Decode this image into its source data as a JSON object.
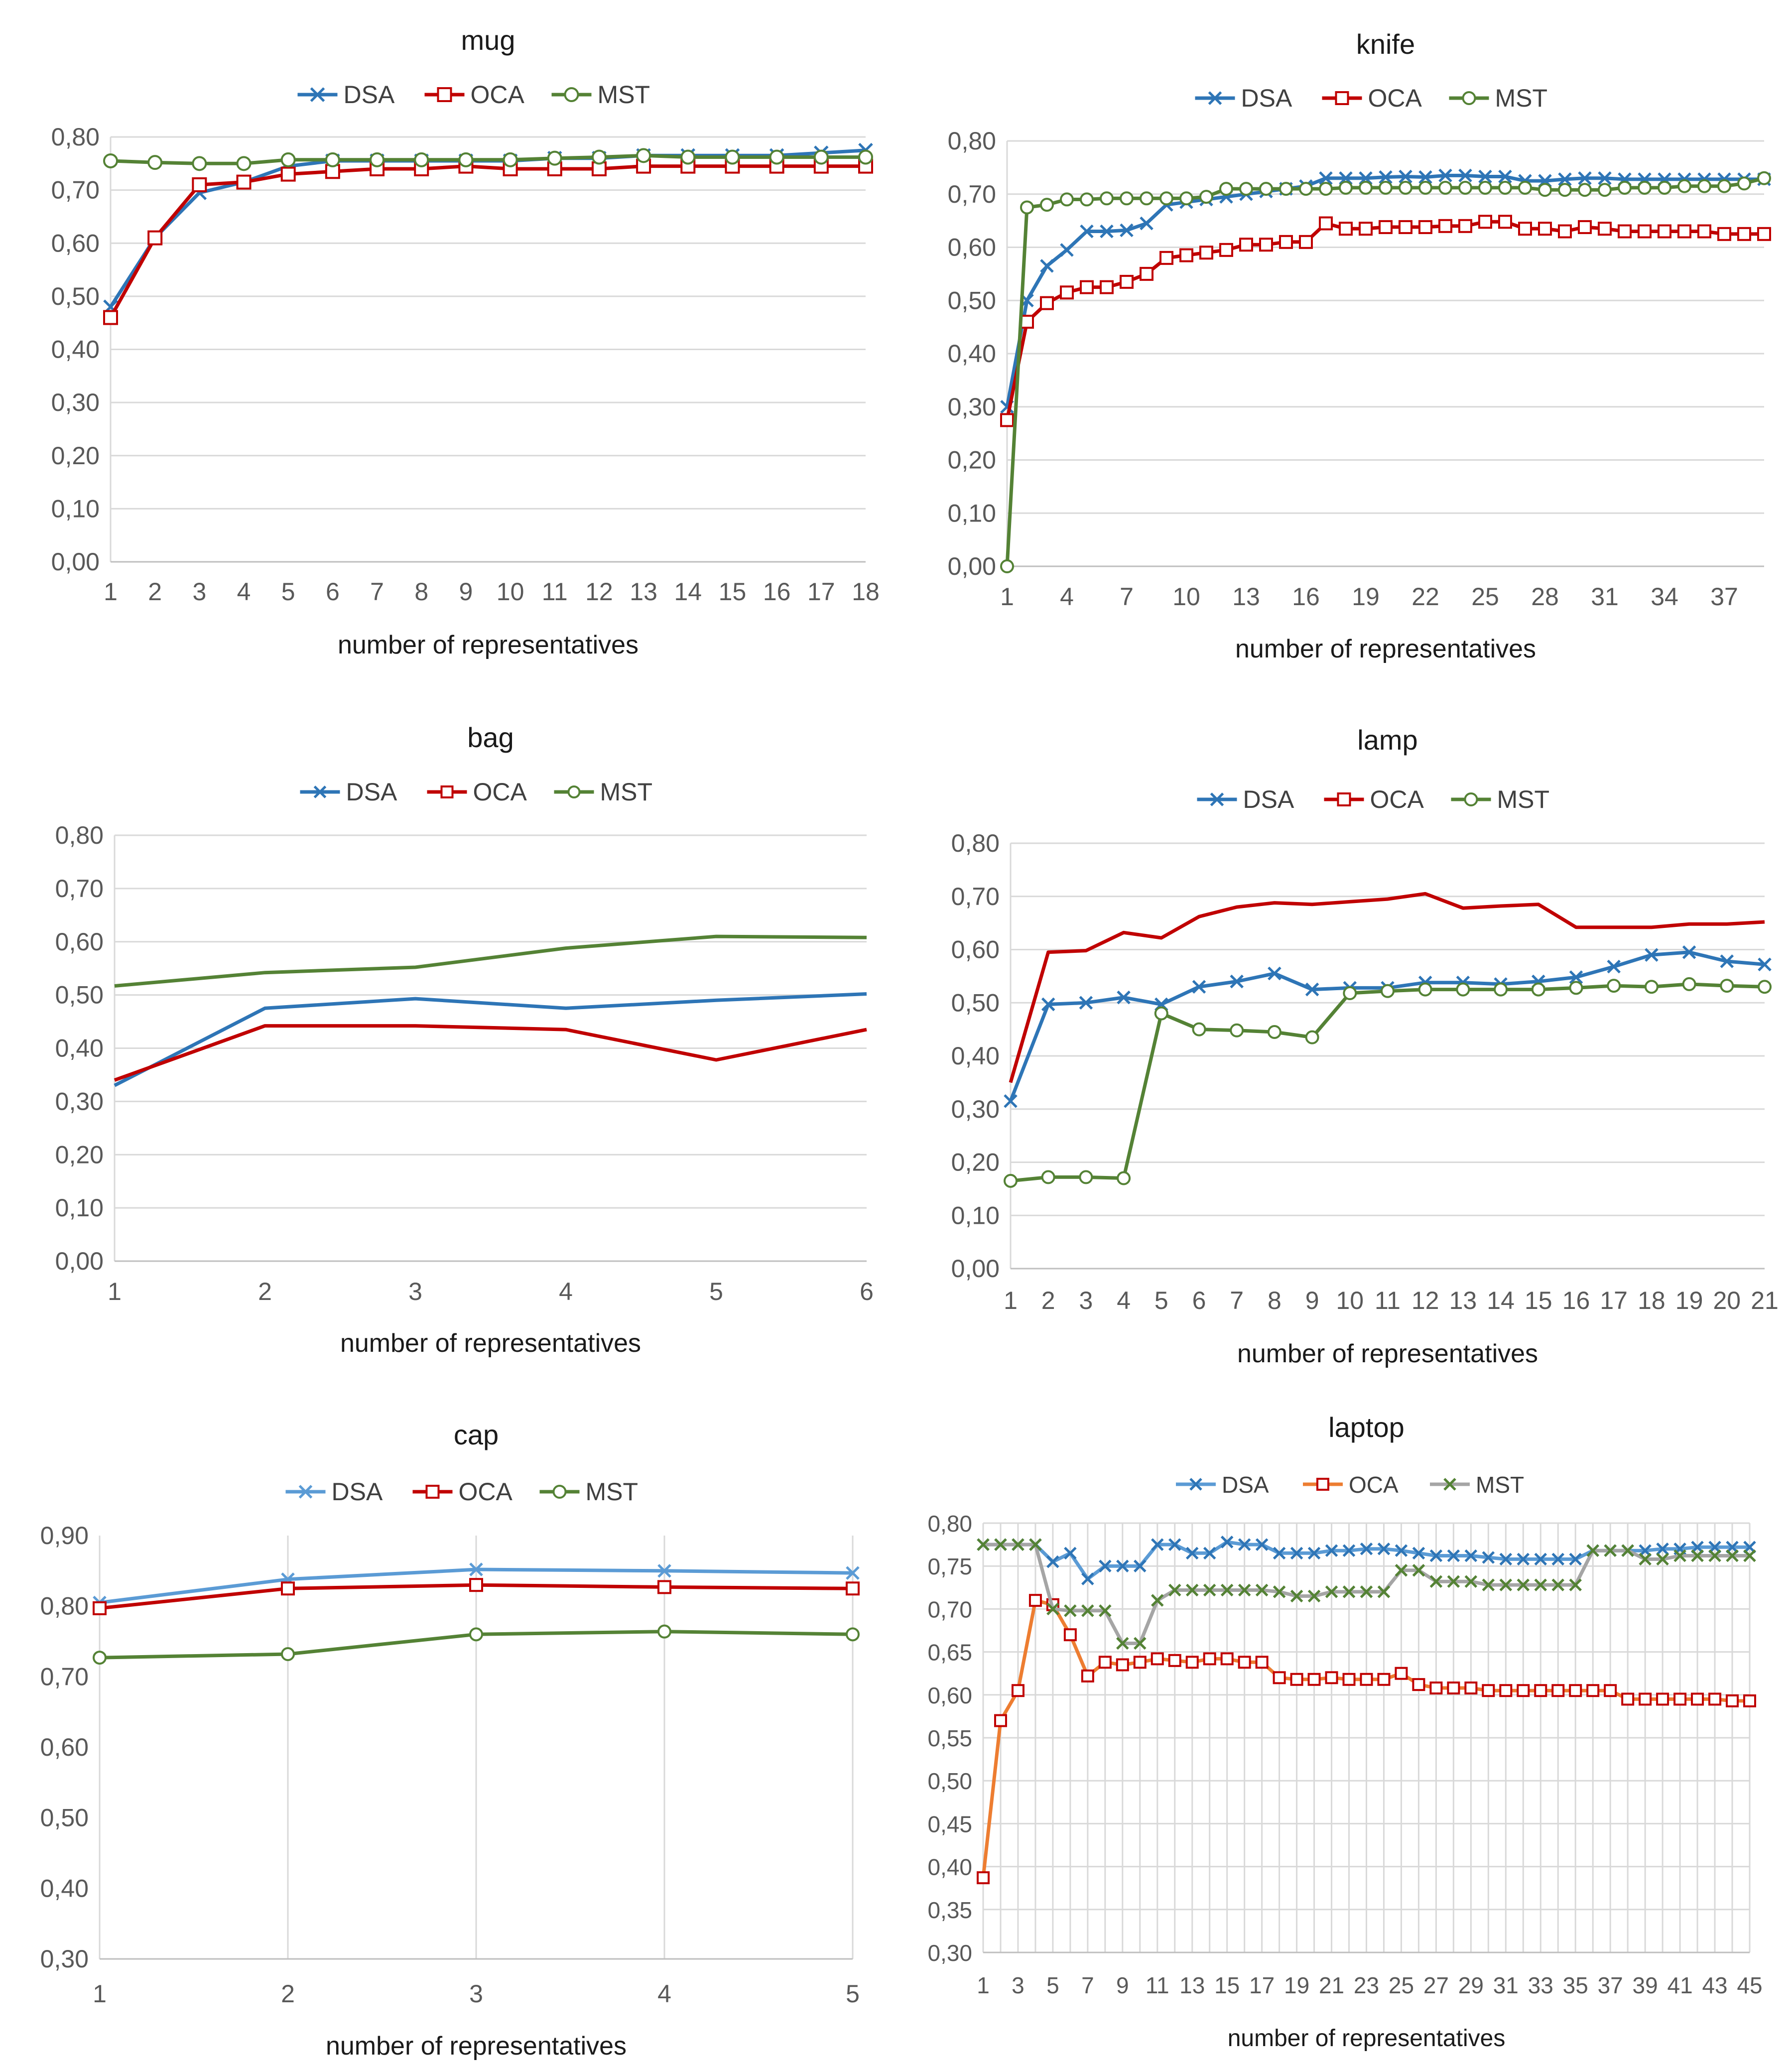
{
  "chart_data": [
    {
      "id": "mug",
      "type": "line",
      "title": "mug",
      "xlabel": "number of representatives",
      "ylabel": "",
      "ylim": [
        0,
        0.8
      ],
      "ytick_step": 0.1,
      "yticks": [
        "0,00",
        "0,10",
        "0,20",
        "0,30",
        "0,40",
        "0,50",
        "0,60",
        "0,70",
        "0,80"
      ],
      "x": [
        1,
        2,
        3,
        4,
        5,
        6,
        7,
        8,
        9,
        10,
        11,
        12,
        13,
        14,
        15,
        16,
        17,
        18
      ],
      "xticks": [
        "1",
        "2",
        "3",
        "4",
        "5",
        "6",
        "7",
        "8",
        "9",
        "10",
        "11",
        "12",
        "13",
        "14",
        "15",
        "16",
        "17",
        "18"
      ],
      "legend": "top",
      "grid": "horizontal",
      "series": [
        {
          "name": "DSA",
          "color": "#2e75b6",
          "marker": "x",
          "values": [
            0.48,
            0.61,
            0.695,
            0.715,
            0.745,
            0.755,
            0.755,
            0.755,
            0.755,
            0.755,
            0.76,
            0.76,
            0.765,
            0.765,
            0.765,
            0.765,
            0.77,
            0.775
          ]
        },
        {
          "name": "OCA",
          "color": "#c00000",
          "marker": "square",
          "values": [
            0.46,
            0.61,
            0.71,
            0.715,
            0.73,
            0.735,
            0.74,
            0.74,
            0.745,
            0.74,
            0.74,
            0.74,
            0.745,
            0.745,
            0.745,
            0.745,
            0.745,
            0.745
          ]
        },
        {
          "name": "MST",
          "color": "#548235",
          "marker": "circle",
          "values": [
            0.755,
            0.752,
            0.75,
            0.75,
            0.757,
            0.757,
            0.757,
            0.757,
            0.757,
            0.757,
            0.76,
            0.762,
            0.765,
            0.762,
            0.762,
            0.762,
            0.762,
            0.762
          ]
        }
      ]
    },
    {
      "id": "knife",
      "type": "line",
      "title": "knife",
      "xlabel": "number of representatives",
      "ylabel": "",
      "ylim": [
        0,
        0.8
      ],
      "ytick_step": 0.1,
      "yticks": [
        "0,00",
        "0,10",
        "0,20",
        "0,30",
        "0,40",
        "0,50",
        "0,60",
        "0,70",
        "0,80"
      ],
      "x": [
        1,
        2,
        3,
        4,
        5,
        6,
        7,
        8,
        9,
        10,
        11,
        12,
        13,
        14,
        15,
        16,
        17,
        18,
        19,
        20,
        21,
        22,
        23,
        24,
        25,
        26,
        27,
        28,
        29,
        30,
        31,
        32,
        33,
        34,
        35,
        36,
        37,
        38,
        39
      ],
      "xticks": [
        "1",
        "4",
        "7",
        "10",
        "13",
        "16",
        "19",
        "22",
        "25",
        "28",
        "31",
        "34",
        "37"
      ],
      "xtick_positions": [
        1,
        4,
        7,
        10,
        13,
        16,
        19,
        22,
        25,
        28,
        31,
        34,
        37
      ],
      "legend": "top",
      "grid": "horizontal",
      "series": [
        {
          "name": "DSA",
          "color": "#2e75b6",
          "marker": "x",
          "values": [
            0.3,
            0.5,
            0.565,
            0.595,
            0.63,
            0.63,
            0.632,
            0.645,
            0.68,
            0.685,
            0.69,
            0.695,
            0.7,
            0.705,
            0.71,
            0.715,
            0.73,
            0.73,
            0.73,
            0.732,
            0.733,
            0.732,
            0.735,
            0.735,
            0.733,
            0.733,
            0.725,
            0.725,
            0.728,
            0.73,
            0.73,
            0.728,
            0.728,
            0.728,
            0.728,
            0.728,
            0.728,
            0.728,
            0.728
          ]
        },
        {
          "name": "OCA",
          "color": "#c00000",
          "marker": "square",
          "values": [
            0.275,
            0.46,
            0.495,
            0.515,
            0.525,
            0.525,
            0.535,
            0.55,
            0.58,
            0.585,
            0.59,
            0.595,
            0.605,
            0.605,
            0.61,
            0.61,
            0.645,
            0.635,
            0.635,
            0.638,
            0.638,
            0.638,
            0.64,
            0.64,
            0.648,
            0.648,
            0.635,
            0.635,
            0.63,
            0.638,
            0.635,
            0.63,
            0.63,
            0.63,
            0.63,
            0.63,
            0.625,
            0.625,
            0.625
          ]
        },
        {
          "name": "MST",
          "color": "#548235",
          "marker": "circle",
          "values": [
            0.0,
            0.675,
            0.68,
            0.69,
            0.69,
            0.692,
            0.692,
            0.692,
            0.692,
            0.692,
            0.695,
            0.71,
            0.71,
            0.71,
            0.71,
            0.71,
            0.71,
            0.712,
            0.712,
            0.712,
            0.712,
            0.712,
            0.712,
            0.712,
            0.712,
            0.712,
            0.712,
            0.708,
            0.708,
            0.708,
            0.708,
            0.712,
            0.712,
            0.712,
            0.715,
            0.715,
            0.715,
            0.72,
            0.73
          ]
        }
      ]
    },
    {
      "id": "bag",
      "type": "line",
      "title": "bag",
      "xlabel": "number of representatives",
      "ylabel": "",
      "ylim": [
        0,
        0.8
      ],
      "ytick_step": 0.1,
      "yticks": [
        "0,00",
        "0,10",
        "0,20",
        "0,30",
        "0,40",
        "0,50",
        "0,60",
        "0,70",
        "0,80"
      ],
      "x": [
        1,
        2,
        3,
        4,
        5,
        6
      ],
      "xticks": [
        "1",
        "2",
        "3",
        "4",
        "5",
        "6"
      ],
      "legend": "top",
      "grid": "horizontal",
      "series": [
        {
          "name": "DSA",
          "color": "#2e75b6",
          "marker": "none",
          "values": [
            0.33,
            0.475,
            0.493,
            0.475,
            0.49,
            0.502
          ]
        },
        {
          "name": "OCA",
          "color": "#c00000",
          "marker": "none",
          "values": [
            0.34,
            0.442,
            0.442,
            0.435,
            0.378,
            0.435
          ]
        },
        {
          "name": "MST",
          "color": "#548235",
          "marker": "none",
          "values": [
            0.517,
            0.542,
            0.552,
            0.588,
            0.61,
            0.608
          ]
        }
      ]
    },
    {
      "id": "lamp",
      "type": "line",
      "title": "lamp",
      "xlabel": "number of representatives",
      "ylabel": "",
      "ylim": [
        0,
        0.8
      ],
      "ytick_step": 0.1,
      "yticks": [
        "0,00",
        "0,10",
        "0,20",
        "0,30",
        "0,40",
        "0,50",
        "0,60",
        "0,70",
        "0,80"
      ],
      "x": [
        1,
        2,
        3,
        4,
        5,
        6,
        7,
        8,
        9,
        10,
        11,
        12,
        13,
        14,
        15,
        16,
        17,
        18,
        19,
        20,
        21
      ],
      "xticks": [
        "1",
        "2",
        "3",
        "4",
        "5",
        "6",
        "7",
        "8",
        "9",
        "10",
        "11",
        "12",
        "13",
        "14",
        "15",
        "16",
        "17",
        "18",
        "19",
        "20",
        "21"
      ],
      "legend": "top",
      "grid": "horizontal",
      "series": [
        {
          "name": "DSA",
          "color": "#2e75b6",
          "marker": "x",
          "values": [
            0.315,
            0.497,
            0.5,
            0.51,
            0.497,
            0.53,
            0.54,
            0.555,
            0.525,
            0.528,
            0.528,
            0.538,
            0.538,
            0.535,
            0.54,
            0.548,
            0.568,
            0.59,
            0.595,
            0.578,
            0.572
          ]
        },
        {
          "name": "OCA",
          "color": "#c00000",
          "marker": "none",
          "values": [
            0.35,
            0.595,
            0.598,
            0.632,
            0.622,
            0.662,
            0.68,
            0.688,
            0.685,
            0.69,
            0.695,
            0.705,
            0.678,
            0.682,
            0.685,
            0.642,
            0.642,
            0.642,
            0.648,
            0.648,
            0.652
          ]
        },
        {
          "name": "MST",
          "color": "#548235",
          "marker": "circle",
          "values": [
            0.165,
            0.172,
            0.172,
            0.17,
            0.48,
            0.45,
            0.448,
            0.445,
            0.435,
            0.518,
            0.522,
            0.525,
            0.525,
            0.525,
            0.525,
            0.528,
            0.532,
            0.53,
            0.535,
            0.532,
            0.53
          ]
        }
      ]
    },
    {
      "id": "cap",
      "type": "line",
      "title": "cap",
      "xlabel": "number of representatives",
      "ylabel": "",
      "ylim": [
        0.3,
        0.9
      ],
      "ytick_step": 0.1,
      "yticks": [
        "0,30",
        "0,40",
        "0,50",
        "0,60",
        "0,70",
        "0,80",
        "0,90"
      ],
      "x": [
        1,
        2,
        3,
        4,
        5
      ],
      "xticks": [
        "1",
        "2",
        "3",
        "4",
        "5"
      ],
      "legend": "top",
      "grid": "vertical",
      "series": [
        {
          "name": "DSA",
          "color": "#5b9bd5",
          "marker": "x",
          "values": [
            0.805,
            0.838,
            0.852,
            0.85,
            0.847
          ]
        },
        {
          "name": "OCA",
          "color": "#c00000",
          "marker": "square",
          "values": [
            0.797,
            0.825,
            0.83,
            0.827,
            0.825
          ]
        },
        {
          "name": "MST",
          "color": "#548235",
          "marker": "circle",
          "values": [
            0.727,
            0.732,
            0.76,
            0.764,
            0.76
          ]
        }
      ]
    },
    {
      "id": "laptop",
      "type": "line",
      "title": "laptop",
      "xlabel": "number of representatives",
      "ylabel": "",
      "ylim": [
        0.3,
        0.8
      ],
      "ytick_step": 0.05,
      "yticks": [
        "0,30",
        "0,35",
        "0,40",
        "0,45",
        "0,50",
        "0,55",
        "0,60",
        "0,65",
        "0,70",
        "0,75",
        "0,80"
      ],
      "x": [
        1,
        2,
        3,
        4,
        5,
        6,
        7,
        8,
        9,
        10,
        11,
        12,
        13,
        14,
        15,
        16,
        17,
        18,
        19,
        20,
        21,
        22,
        23,
        24,
        25,
        26,
        27,
        28,
        29,
        30,
        31,
        32,
        33,
        34,
        35,
        36,
        37,
        38,
        39,
        40,
        41,
        42,
        43,
        44,
        45
      ],
      "xticks": [
        "1",
        "3",
        "5",
        "7",
        "9",
        "11",
        "13",
        "15",
        "17",
        "19",
        "21",
        "23",
        "25",
        "27",
        "29",
        "31",
        "33",
        "35",
        "37",
        "39",
        "41",
        "43",
        "45"
      ],
      "xtick_positions": [
        1,
        3,
        5,
        7,
        9,
        11,
        13,
        15,
        17,
        19,
        21,
        23,
        25,
        27,
        29,
        31,
        33,
        35,
        37,
        39,
        41,
        43,
        45
      ],
      "legend": "top",
      "grid": "both",
      "series": [
        {
          "name": "DSA",
          "color": "#2e75b6",
          "marker": "x",
          "values": [
            0.775,
            0.775,
            0.775,
            0.775,
            0.755,
            0.765,
            0.735,
            0.75,
            0.75,
            0.75,
            0.775,
            0.775,
            0.765,
            0.765,
            0.778,
            0.775,
            0.775,
            0.765,
            0.765,
            0.765,
            0.768,
            0.768,
            0.77,
            0.77,
            0.768,
            0.765,
            0.762,
            0.762,
            0.762,
            0.76,
            0.758,
            0.758,
            0.758,
            0.758,
            0.758,
            0.768,
            0.768,
            0.768,
            0.768,
            0.77,
            0.77,
            0.772,
            0.772,
            0.772,
            0.772
          ]
        },
        {
          "name": "OCA",
          "color": "#c00000",
          "marker": "square",
          "values": [
            0.387,
            0.57,
            0.605,
            0.71,
            0.705,
            0.67,
            0.622,
            0.638,
            0.635,
            0.638,
            0.642,
            0.64,
            0.638,
            0.642,
            0.642,
            0.638,
            0.638,
            0.62,
            0.618,
            0.618,
            0.62,
            0.618,
            0.618,
            0.618,
            0.625,
            0.612,
            0.608,
            0.608,
            0.608,
            0.605,
            0.605,
            0.605,
            0.605,
            0.605,
            0.605,
            0.605,
            0.605,
            0.595,
            0.595,
            0.595,
            0.595,
            0.595,
            0.595,
            0.593,
            0.593
          ]
        },
        {
          "name": "MST",
          "color": "#548235",
          "marker": "x",
          "values": [
            0.775,
            0.775,
            0.775,
            0.775,
            0.7,
            0.698,
            0.698,
            0.698,
            0.66,
            0.66,
            0.71,
            0.722,
            0.722,
            0.722,
            0.722,
            0.722,
            0.722,
            0.72,
            0.715,
            0.715,
            0.72,
            0.72,
            0.72,
            0.72,
            0.745,
            0.745,
            0.732,
            0.732,
            0.732,
            0.728,
            0.728,
            0.728,
            0.728,
            0.728,
            0.728,
            0.768,
            0.768,
            0.768,
            0.758,
            0.758,
            0.762,
            0.762,
            0.762,
            0.762,
            0.762
          ]
        }
      ],
      "connector_colors": {
        "DSA": "#5b9bd5",
        "OCA": "#ed7d31",
        "MST": "#a5a5a5"
      }
    }
  ]
}
